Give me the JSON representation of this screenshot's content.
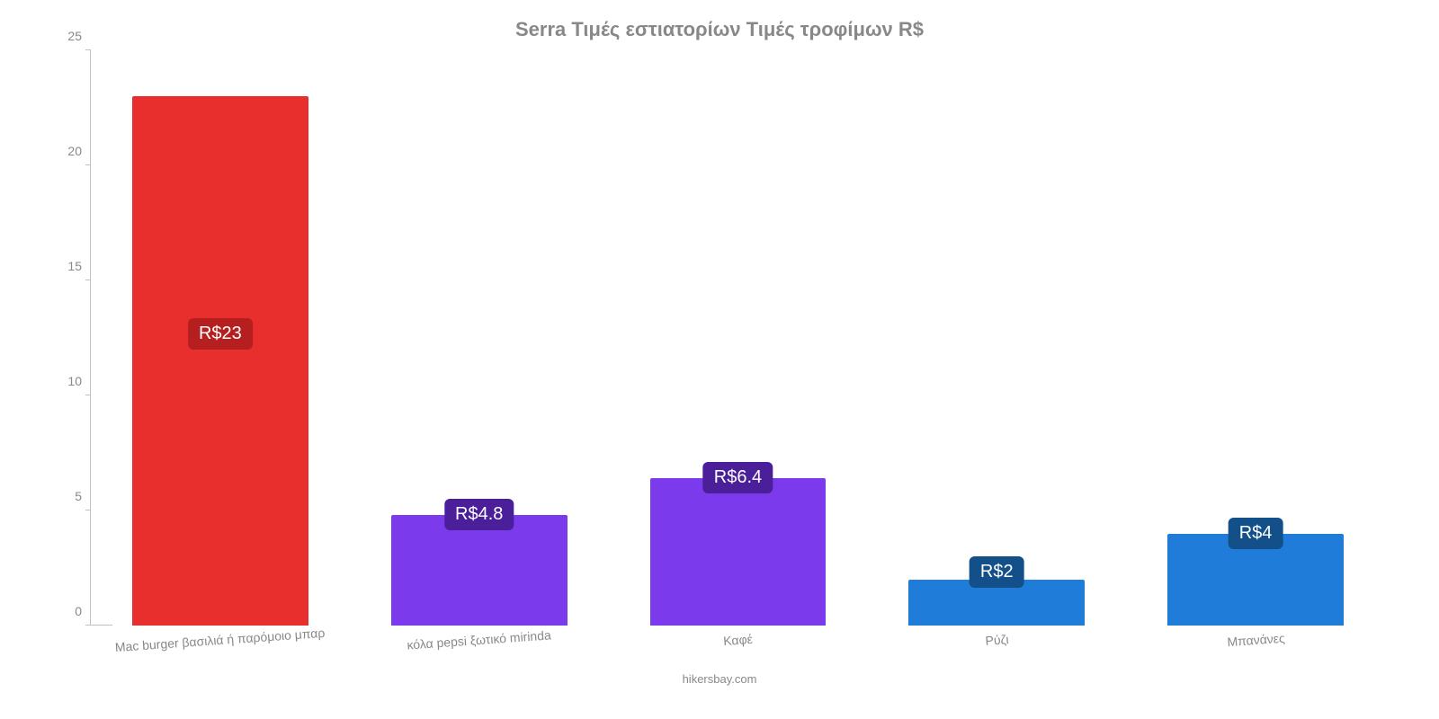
{
  "chart": {
    "type": "bar",
    "title": "Serra Τιμές εστιατορίων Τιμές τροφίμων R$",
    "title_color": "#888888",
    "title_fontsize": 22,
    "background_color": "#ffffff",
    "axis_color": "#c0c0c0",
    "label_color": "#888888",
    "label_fontsize": 14,
    "bar_width_ratio": 0.68,
    "ylim": [
      0,
      25
    ],
    "ytick_step": 5,
    "yticks": [
      0,
      5,
      10,
      15,
      20,
      25
    ],
    "categories": [
      "Mac burger βασιλιά ή παρόμοιο μπαρ",
      "κόλα pepsi ξωτικό mirinda",
      "Καφέ",
      "Ρύζι",
      "Μπανάνες"
    ],
    "values": [
      23,
      4.8,
      6.4,
      2,
      4
    ],
    "value_labels": [
      "R$23",
      "R$4.8",
      "R$6.4",
      "R$2",
      "R$4"
    ],
    "bar_colors": [
      "#e92e2e",
      "#7c3aed",
      "#7c3aed",
      "#1f7cd8",
      "#1f7cd8"
    ],
    "value_label_bg": [
      "#b51f1f",
      "#4a1f99",
      "#4a1f99",
      "#134f89",
      "#134f89"
    ],
    "value_label_fontsize": 20,
    "value_label_color": "#ffffff",
    "credit": "hikersbay.com",
    "x_label_rotation_deg": -4
  }
}
